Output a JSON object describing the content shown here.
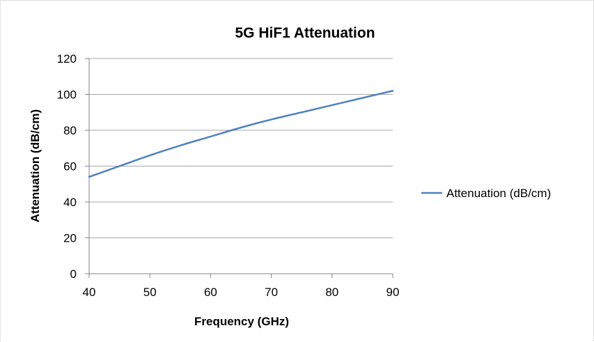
{
  "chart_data": {
    "type": "line",
    "title": "5G HiF1 Attenuation",
    "xlabel": "Frequency (GHz)",
    "ylabel": "Attenuation (dB/cm)",
    "xlim": [
      40,
      90
    ],
    "ylim": [
      0,
      120
    ],
    "x_ticks": [
      "40",
      "50",
      "60",
      "70",
      "80",
      "90"
    ],
    "y_ticks": [
      "0",
      "20",
      "40",
      "60",
      "80",
      "100",
      "120"
    ],
    "grid": "horizontal",
    "legend_position": "right",
    "series": [
      {
        "name": "Attenuation (dB/cm)",
        "color": "#4f81bd",
        "x": [
          40,
          45,
          50,
          55,
          60,
          65,
          70,
          75,
          80,
          85,
          90
        ],
        "y": [
          54,
          60,
          66,
          71.5,
          76.5,
          81.5,
          86,
          90,
          94,
          98,
          102
        ]
      }
    ]
  }
}
